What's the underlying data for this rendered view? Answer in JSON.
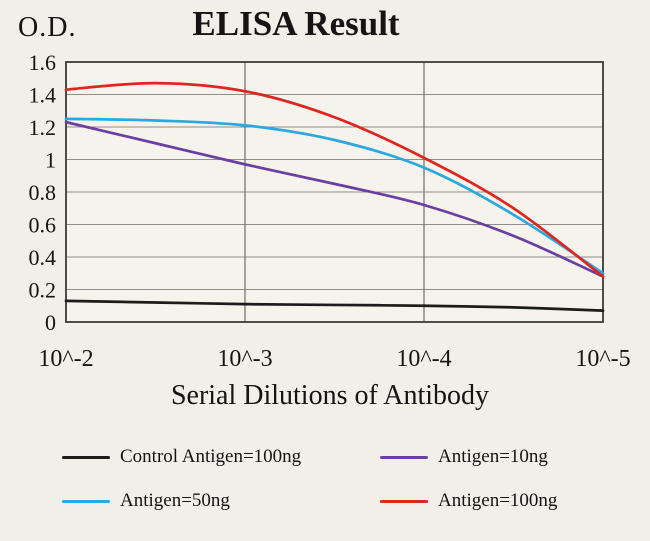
{
  "title": "ELISA Result",
  "chart_data": {
    "type": "line",
    "title": "ELISA Result",
    "ylabel": "O.D.",
    "xlabel": "Serial Dilutions of Antibody",
    "x_tick_labels": [
      "10^-2",
      "10^-3",
      "10^-4",
      "10^-5"
    ],
    "y_ticks": [
      0,
      0.2,
      0.4,
      0.6,
      0.8,
      1,
      1.2,
      1.4,
      1.6
    ],
    "ylim": [
      0,
      1.6
    ],
    "grid": true,
    "legend_position": "bottom",
    "series": [
      {
        "name": "Control Antigen=100ng",
        "color": "#1c1c1c",
        "points": [
          [
            0,
            0.13
          ],
          [
            0.5,
            0.12
          ],
          [
            1,
            0.11
          ],
          [
            1.5,
            0.105
          ],
          [
            2,
            0.1
          ],
          [
            2.5,
            0.09
          ],
          [
            3,
            0.07
          ]
        ]
      },
      {
        "name": "Antigen=10ng",
        "color": "#6b3fa0",
        "points": [
          [
            0,
            1.23
          ],
          [
            0.5,
            1.1
          ],
          [
            1,
            0.97
          ],
          [
            1.5,
            0.85
          ],
          [
            2,
            0.72
          ],
          [
            2.5,
            0.53
          ],
          [
            3,
            0.28
          ]
        ]
      },
      {
        "name": "Antigen=50ng",
        "color": "#2aa8df",
        "points": [
          [
            0,
            1.25
          ],
          [
            0.5,
            1.24
          ],
          [
            1,
            1.21
          ],
          [
            1.5,
            1.12
          ],
          [
            2,
            0.95
          ],
          [
            2.5,
            0.66
          ],
          [
            3,
            0.3
          ]
        ]
      },
      {
        "name": "Antigen=100ng",
        "color": "#e02520",
        "points": [
          [
            0,
            1.43
          ],
          [
            0.5,
            1.47
          ],
          [
            1,
            1.42
          ],
          [
            1.5,
            1.26
          ],
          [
            2,
            1.01
          ],
          [
            2.5,
            0.7
          ],
          [
            3,
            0.28
          ]
        ]
      }
    ]
  }
}
